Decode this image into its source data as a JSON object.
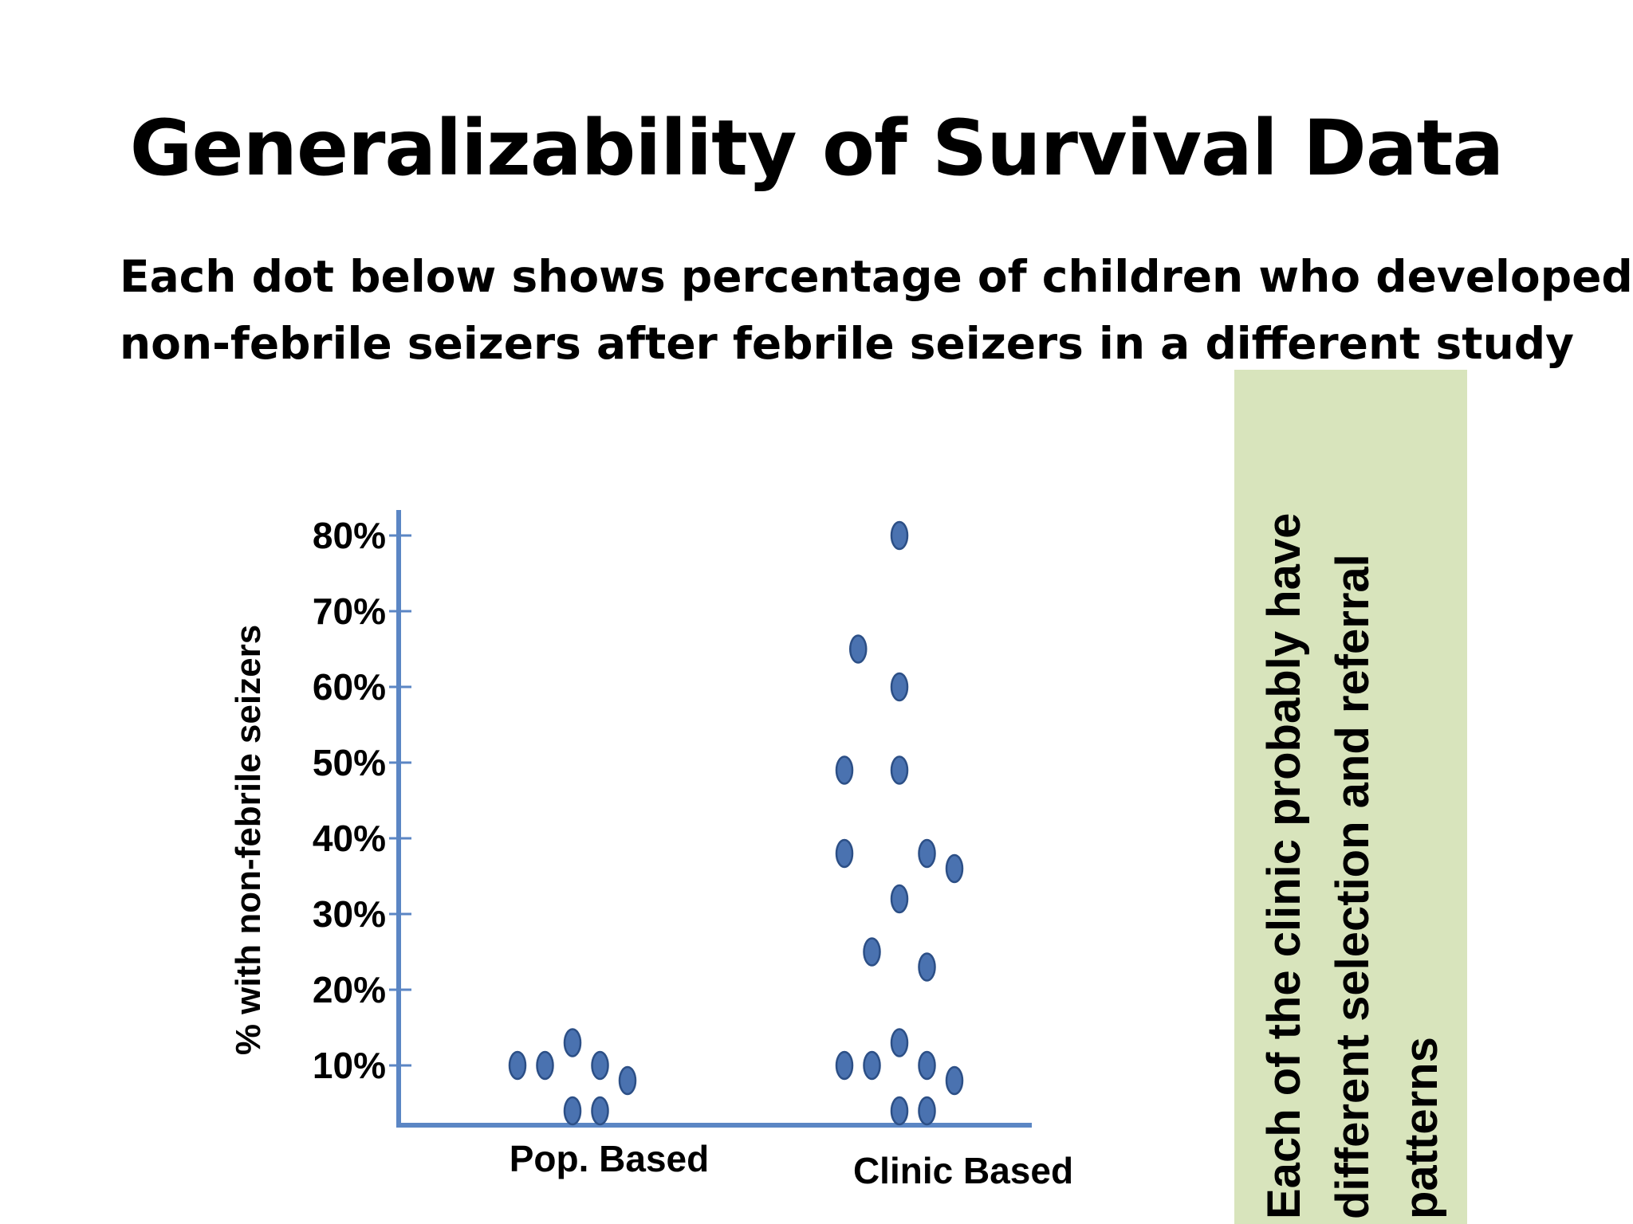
{
  "slide": {
    "title": "Generalizability of Survival Data",
    "subtitle_lines": [
      "Each dot below shows percentage of children who developed",
      "non-febrile seizers after febrile seizers in a different study"
    ],
    "callout_lines": [
      "Each of the clinic probably have",
      "different selection and referral",
      "patterns"
    ],
    "callout_color": "#d8e4bc"
  },
  "chart_data": {
    "type": "scatter",
    "title": "",
    "xlabel": "",
    "ylabel": "% with non-febrile seizers",
    "categories": [
      "Pop. Based",
      "Clinic Based"
    ],
    "ylim": [
      0,
      80
    ],
    "yticks": [
      {
        "value": 10,
        "label": "10%"
      },
      {
        "value": 20,
        "label": "20%"
      },
      {
        "value": 30,
        "label": "30%"
      },
      {
        "value": 40,
        "label": "40%"
      },
      {
        "value": 50,
        "label": "50%"
      },
      {
        "value": 60,
        "label": "60%"
      },
      {
        "value": 70,
        "label": "70%"
      },
      {
        "value": 80,
        "label": "80%"
      }
    ],
    "grid": false,
    "legend": "none",
    "dot_color": "#4a72b0",
    "axis_color": "#5b86c4",
    "points": [
      {
        "category": "Pop. Based",
        "value": 13
      },
      {
        "category": "Pop. Based",
        "value": 10
      },
      {
        "category": "Pop. Based",
        "value": 10
      },
      {
        "category": "Pop. Based",
        "value": 10
      },
      {
        "category": "Pop. Based",
        "value": 8
      },
      {
        "category": "Pop. Based",
        "value": 4
      },
      {
        "category": "Pop. Based",
        "value": 4
      },
      {
        "category": "Clinic Based",
        "value": 80
      },
      {
        "category": "Clinic Based",
        "value": 65
      },
      {
        "category": "Clinic Based",
        "value": 60
      },
      {
        "category": "Clinic Based",
        "value": 49
      },
      {
        "category": "Clinic Based",
        "value": 49
      },
      {
        "category": "Clinic Based",
        "value": 38
      },
      {
        "category": "Clinic Based",
        "value": 38
      },
      {
        "category": "Clinic Based",
        "value": 36
      },
      {
        "category": "Clinic Based",
        "value": 32
      },
      {
        "category": "Clinic Based",
        "value": 25
      },
      {
        "category": "Clinic Based",
        "value": 23
      },
      {
        "category": "Clinic Based",
        "value": 13
      },
      {
        "category": "Clinic Based",
        "value": 10
      },
      {
        "category": "Clinic Based",
        "value": 10
      },
      {
        "category": "Clinic Based",
        "value": 10
      },
      {
        "category": "Clinic Based",
        "value": 8
      },
      {
        "category": "Clinic Based",
        "value": 4
      },
      {
        "category": "Clinic Based",
        "value": 4
      }
    ]
  }
}
